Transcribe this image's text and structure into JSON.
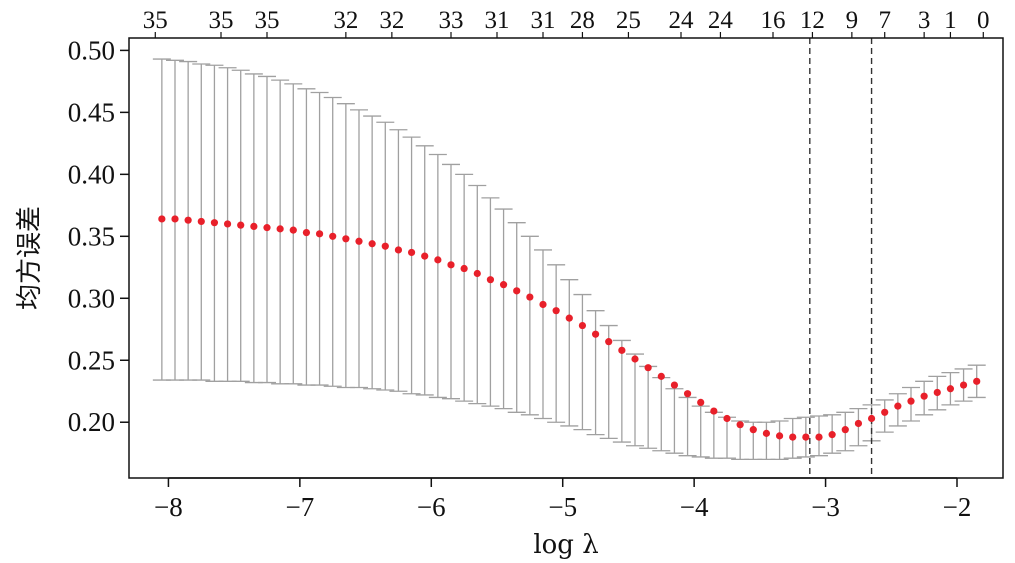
{
  "chart_data": {
    "type": "scatter",
    "title": "",
    "xlabel": "log λ",
    "ylabel": "均方误差",
    "xlim": [
      -8.3,
      -1.65
    ],
    "ylim": [
      0.155,
      0.51
    ],
    "x_ticks": [
      -8,
      -7,
      -6,
      -5,
      -4,
      -3,
      -2
    ],
    "x_tick_labels": [
      "−8",
      "−7",
      "−6",
      "−5",
      "−4",
      "−3",
      "−2"
    ],
    "y_ticks": [
      0.2,
      0.25,
      0.3,
      0.35,
      0.4,
      0.45,
      0.5
    ],
    "y_tick_labels": [
      "0.20",
      "0.25",
      "0.30",
      "0.35",
      "0.40",
      "0.45",
      "0.50"
    ],
    "top_axis": {
      "positions": [
        -8.1,
        -7.6,
        -7.25,
        -6.65,
        -6.3,
        -5.85,
        -5.5,
        -5.15,
        -4.85,
        -4.5,
        -4.1,
        -3.8,
        -3.4,
        -3.1,
        -2.8,
        -2.55,
        -2.25,
        -2.05,
        -1.8
      ],
      "labels": [
        "35",
        "35",
        "35",
        "32",
        "32",
        "33",
        "31",
        "31",
        "28",
        "25",
        "24",
        "24",
        "16",
        "12",
        "9",
        "7",
        "3",
        "1",
        "0"
      ]
    },
    "vlines": [
      -3.12,
      -2.65
    ],
    "grid": false,
    "legend": "none",
    "colors": {
      "point": "#e8202a",
      "errorbar": "#a0a0a0",
      "vline": "#333333",
      "axis": "#111111"
    },
    "series": [
      {
        "x": [
          -8.05,
          -7.95,
          -7.85,
          -7.75,
          -7.65,
          -7.55,
          -7.45,
          -7.35,
          -7.25,
          -7.15,
          -7.05,
          -6.95,
          -6.85,
          -6.75,
          -6.65,
          -6.55,
          -6.45,
          -6.35,
          -6.25,
          -6.15,
          -6.05,
          -5.95,
          -5.85,
          -5.75,
          -5.65,
          -5.55,
          -5.45,
          -5.35,
          -5.25,
          -5.15,
          -5.05,
          -4.95,
          -4.85,
          -4.75,
          -4.65,
          -4.55,
          -4.45,
          -4.35,
          -4.25,
          -4.15,
          -4.05,
          -3.95,
          -3.85,
          -3.75,
          -3.65,
          -3.55,
          -3.45,
          -3.35,
          -3.25,
          -3.15,
          -3.05,
          -2.95,
          -2.85,
          -2.75,
          -2.65,
          -2.55,
          -2.45,
          -2.35,
          -2.25,
          -2.15,
          -2.05,
          -1.95,
          -1.85
        ],
        "y": [
          0.364,
          0.364,
          0.363,
          0.362,
          0.361,
          0.36,
          0.359,
          0.358,
          0.357,
          0.356,
          0.355,
          0.353,
          0.352,
          0.35,
          0.348,
          0.346,
          0.344,
          0.342,
          0.339,
          0.337,
          0.334,
          0.331,
          0.327,
          0.324,
          0.32,
          0.315,
          0.311,
          0.306,
          0.301,
          0.295,
          0.29,
          0.284,
          0.278,
          0.271,
          0.265,
          0.258,
          0.251,
          0.244,
          0.237,
          0.23,
          0.223,
          0.216,
          0.209,
          0.203,
          0.198,
          0.194,
          0.191,
          0.189,
          0.188,
          0.188,
          0.188,
          0.19,
          0.194,
          0.199,
          0.203,
          0.208,
          0.213,
          0.217,
          0.221,
          0.224,
          0.227,
          0.23,
          0.233
        ],
        "upper": [
          0.493,
          0.492,
          0.491,
          0.489,
          0.488,
          0.486,
          0.484,
          0.481,
          0.479,
          0.476,
          0.473,
          0.469,
          0.466,
          0.462,
          0.457,
          0.452,
          0.447,
          0.442,
          0.436,
          0.43,
          0.423,
          0.416,
          0.408,
          0.4,
          0.391,
          0.381,
          0.372,
          0.361,
          0.35,
          0.339,
          0.327,
          0.315,
          0.303,
          0.29,
          0.278,
          0.266,
          0.255,
          0.245,
          0.236,
          0.227,
          0.22,
          0.213,
          0.208,
          0.204,
          0.201,
          0.2,
          0.2,
          0.201,
          0.203,
          0.204,
          0.205,
          0.206,
          0.208,
          0.211,
          0.214,
          0.218,
          0.223,
          0.228,
          0.233,
          0.237,
          0.24,
          0.243,
          0.246
        ],
        "lower": [
          0.234,
          0.234,
          0.234,
          0.234,
          0.233,
          0.233,
          0.233,
          0.232,
          0.232,
          0.231,
          0.231,
          0.23,
          0.23,
          0.229,
          0.228,
          0.228,
          0.227,
          0.226,
          0.225,
          0.223,
          0.222,
          0.22,
          0.219,
          0.217,
          0.215,
          0.213,
          0.211,
          0.208,
          0.206,
          0.203,
          0.2,
          0.197,
          0.194,
          0.19,
          0.187,
          0.184,
          0.181,
          0.179,
          0.177,
          0.175,
          0.173,
          0.172,
          0.171,
          0.171,
          0.17,
          0.17,
          0.17,
          0.17,
          0.171,
          0.172,
          0.173,
          0.175,
          0.177,
          0.181,
          0.185,
          0.192,
          0.197,
          0.201,
          0.206,
          0.21,
          0.214,
          0.217,
          0.22
        ]
      }
    ]
  }
}
